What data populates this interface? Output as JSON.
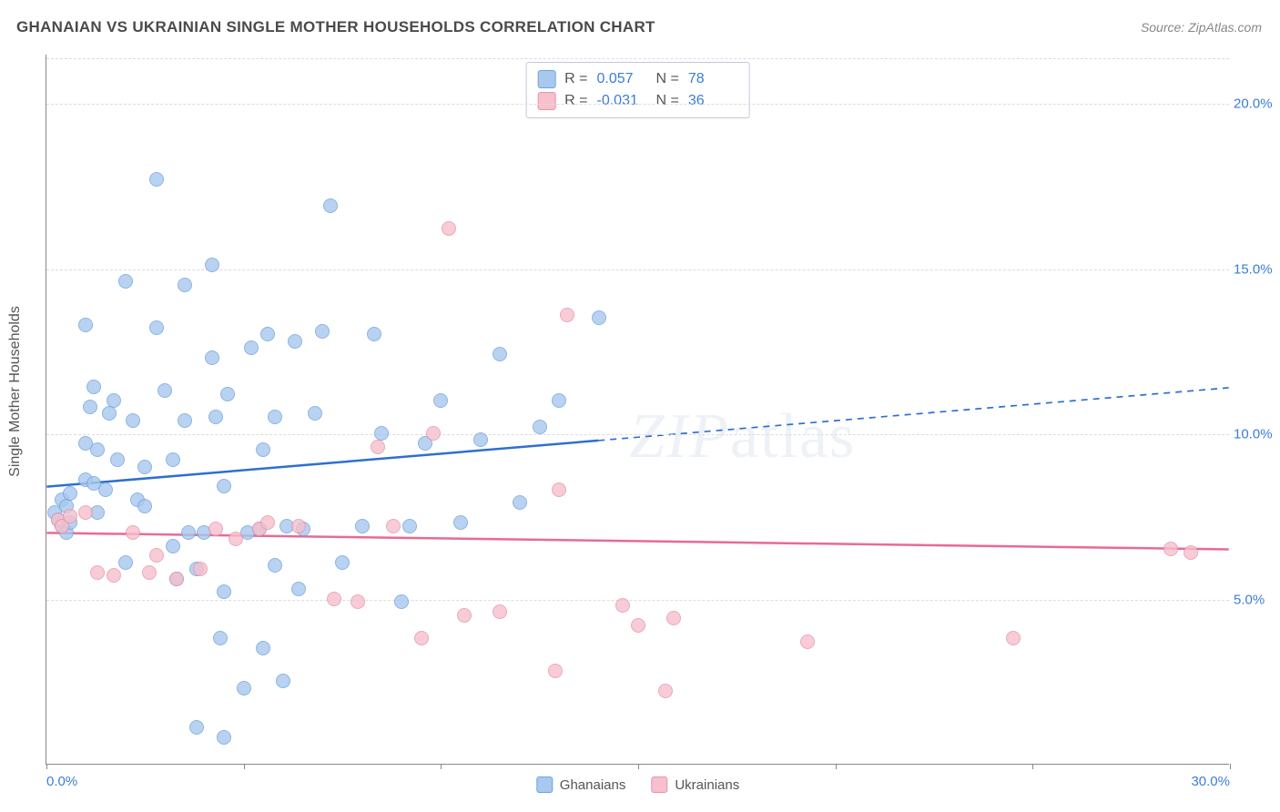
{
  "title": "GHANAIAN VS UKRAINIAN SINGLE MOTHER HOUSEHOLDS CORRELATION CHART",
  "source": "Source: ZipAtlas.com",
  "ylabel": "Single Mother Households",
  "watermark": {
    "zip": "ZIP",
    "atlas": "atlas"
  },
  "chart": {
    "type": "scatter",
    "background_color": "#ffffff",
    "grid_color": "#dcdcdc",
    "axis_color": "#888888",
    "tick_label_color": "#3b7dd8",
    "label_color": "#555555",
    "title_color": "#4a4a4a",
    "title_fontsize": 17,
    "label_fontsize": 16,
    "tick_fontsize": 15,
    "xlim": [
      0,
      30
    ],
    "ylim": [
      0,
      21.5
    ],
    "xticks": [
      0,
      5,
      10,
      15,
      20,
      25,
      30
    ],
    "xtick_labels": [
      "0.0%",
      "",
      "",
      "",
      "",
      "",
      "30.0%"
    ],
    "yticks": [
      5,
      10,
      15,
      20
    ],
    "ytick_labels": [
      "5.0%",
      "10.0%",
      "15.0%",
      "20.0%"
    ],
    "marker_radius": 8,
    "marker_opacity": 0.35,
    "line_width": 2.5,
    "series": [
      {
        "name": "Ghanaians",
        "fill_color": "#a8c8ee",
        "stroke_color": "#6fa3dd",
        "line_color": "#2e6fd0",
        "R": "0.057",
        "N": "78",
        "trendline": {
          "x1": 0,
          "y1": 8.4,
          "x2": 14,
          "y2": 9.8,
          "dash_from_x": 14,
          "dash_to": {
            "x": 30,
            "y": 11.4
          }
        },
        "points": [
          [
            0.2,
            7.6
          ],
          [
            0.3,
            7.4
          ],
          [
            0.4,
            7.2
          ],
          [
            0.4,
            8.0
          ],
          [
            0.5,
            7.0
          ],
          [
            0.5,
            7.8
          ],
          [
            0.6,
            8.2
          ],
          [
            0.6,
            7.3
          ],
          [
            1.0,
            8.6
          ],
          [
            1.0,
            9.7
          ],
          [
            1.0,
            13.3
          ],
          [
            1.1,
            10.8
          ],
          [
            1.2,
            8.5
          ],
          [
            1.2,
            11.4
          ],
          [
            1.3,
            9.5
          ],
          [
            1.3,
            7.6
          ],
          [
            1.5,
            8.3
          ],
          [
            1.6,
            10.6
          ],
          [
            1.7,
            11.0
          ],
          [
            1.8,
            9.2
          ],
          [
            2.0,
            6.1
          ],
          [
            2.0,
            14.6
          ],
          [
            2.2,
            10.4
          ],
          [
            2.3,
            8.0
          ],
          [
            2.5,
            7.8
          ],
          [
            2.5,
            9.0
          ],
          [
            2.8,
            17.7
          ],
          [
            2.8,
            13.2
          ],
          [
            3.0,
            11.3
          ],
          [
            3.2,
            6.6
          ],
          [
            3.2,
            9.2
          ],
          [
            3.3,
            5.6
          ],
          [
            3.5,
            10.4
          ],
          [
            3.5,
            14.5
          ],
          [
            3.6,
            7.0
          ],
          [
            3.8,
            5.9
          ],
          [
            3.8,
            1.1
          ],
          [
            4.0,
            7.0
          ],
          [
            4.2,
            15.1
          ],
          [
            4.2,
            12.3
          ],
          [
            4.3,
            10.5
          ],
          [
            4.4,
            3.8
          ],
          [
            4.5,
            5.2
          ],
          [
            4.5,
            0.8
          ],
          [
            4.5,
            8.4
          ],
          [
            4.6,
            11.2
          ],
          [
            5.0,
            2.3
          ],
          [
            5.1,
            7.0
          ],
          [
            5.2,
            12.6
          ],
          [
            5.4,
            7.1
          ],
          [
            5.5,
            9.5
          ],
          [
            5.5,
            3.5
          ],
          [
            5.6,
            13.0
          ],
          [
            5.8,
            10.5
          ],
          [
            5.8,
            6.0
          ],
          [
            6.0,
            2.5
          ],
          [
            6.1,
            7.2
          ],
          [
            6.3,
            12.8
          ],
          [
            6.4,
            5.3
          ],
          [
            6.5,
            7.1
          ],
          [
            6.8,
            10.6
          ],
          [
            7.0,
            13.1
          ],
          [
            7.2,
            16.9
          ],
          [
            7.5,
            6.1
          ],
          [
            8.0,
            7.2
          ],
          [
            8.3,
            13.0
          ],
          [
            8.5,
            10.0
          ],
          [
            9.0,
            4.9
          ],
          [
            9.2,
            7.2
          ],
          [
            9.6,
            9.7
          ],
          [
            10.0,
            11.0
          ],
          [
            10.5,
            7.3
          ],
          [
            11.0,
            9.8
          ],
          [
            11.5,
            12.4
          ],
          [
            12.0,
            7.9
          ],
          [
            12.5,
            10.2
          ],
          [
            13.0,
            11.0
          ],
          [
            14.0,
            13.5
          ]
        ]
      },
      {
        "name": "Ukrainians",
        "fill_color": "#f6c0cd",
        "stroke_color": "#e893ab",
        "line_color": "#e86a94",
        "R": "-0.031",
        "N": "36",
        "trendline": {
          "x1": 0,
          "y1": 7.0,
          "x2": 30,
          "y2": 6.5
        },
        "points": [
          [
            0.3,
            7.4
          ],
          [
            0.4,
            7.2
          ],
          [
            0.6,
            7.5
          ],
          [
            1.0,
            7.6
          ],
          [
            1.3,
            5.8
          ],
          [
            1.7,
            5.7
          ],
          [
            2.2,
            7.0
          ],
          [
            2.6,
            5.8
          ],
          [
            2.8,
            6.3
          ],
          [
            3.3,
            5.6
          ],
          [
            3.9,
            5.9
          ],
          [
            4.3,
            7.1
          ],
          [
            4.8,
            6.8
          ],
          [
            5.4,
            7.1
          ],
          [
            5.6,
            7.3
          ],
          [
            6.4,
            7.2
          ],
          [
            7.3,
            5.0
          ],
          [
            7.9,
            4.9
          ],
          [
            8.4,
            9.6
          ],
          [
            8.8,
            7.2
          ],
          [
            9.5,
            3.8
          ],
          [
            9.8,
            10.0
          ],
          [
            10.2,
            16.2
          ],
          [
            10.6,
            4.5
          ],
          [
            11.5,
            4.6
          ],
          [
            12.9,
            2.8
          ],
          [
            13.0,
            8.3
          ],
          [
            13.2,
            13.6
          ],
          [
            14.6,
            4.8
          ],
          [
            15.0,
            4.2
          ],
          [
            15.7,
            2.2
          ],
          [
            15.9,
            4.4
          ],
          [
            19.3,
            3.7
          ],
          [
            24.5,
            3.8
          ],
          [
            28.5,
            6.5
          ],
          [
            29.0,
            6.4
          ]
        ]
      }
    ]
  },
  "legend_top": [
    {
      "swatch_fill": "#a8c8ee",
      "swatch_stroke": "#6fa3dd",
      "r_label": "R =",
      "r_val": "0.057",
      "n_label": "N =",
      "n_val": "78"
    },
    {
      "swatch_fill": "#f6c0cd",
      "swatch_stroke": "#e893ab",
      "r_label": "R =",
      "r_val": "-0.031",
      "n_label": "N =",
      "n_val": "36"
    }
  ],
  "legend_bottom": [
    {
      "label": "Ghanaians",
      "fill": "#a8c8ee",
      "stroke": "#6fa3dd"
    },
    {
      "label": "Ukrainians",
      "fill": "#f6c0cd",
      "stroke": "#e893ab"
    }
  ]
}
